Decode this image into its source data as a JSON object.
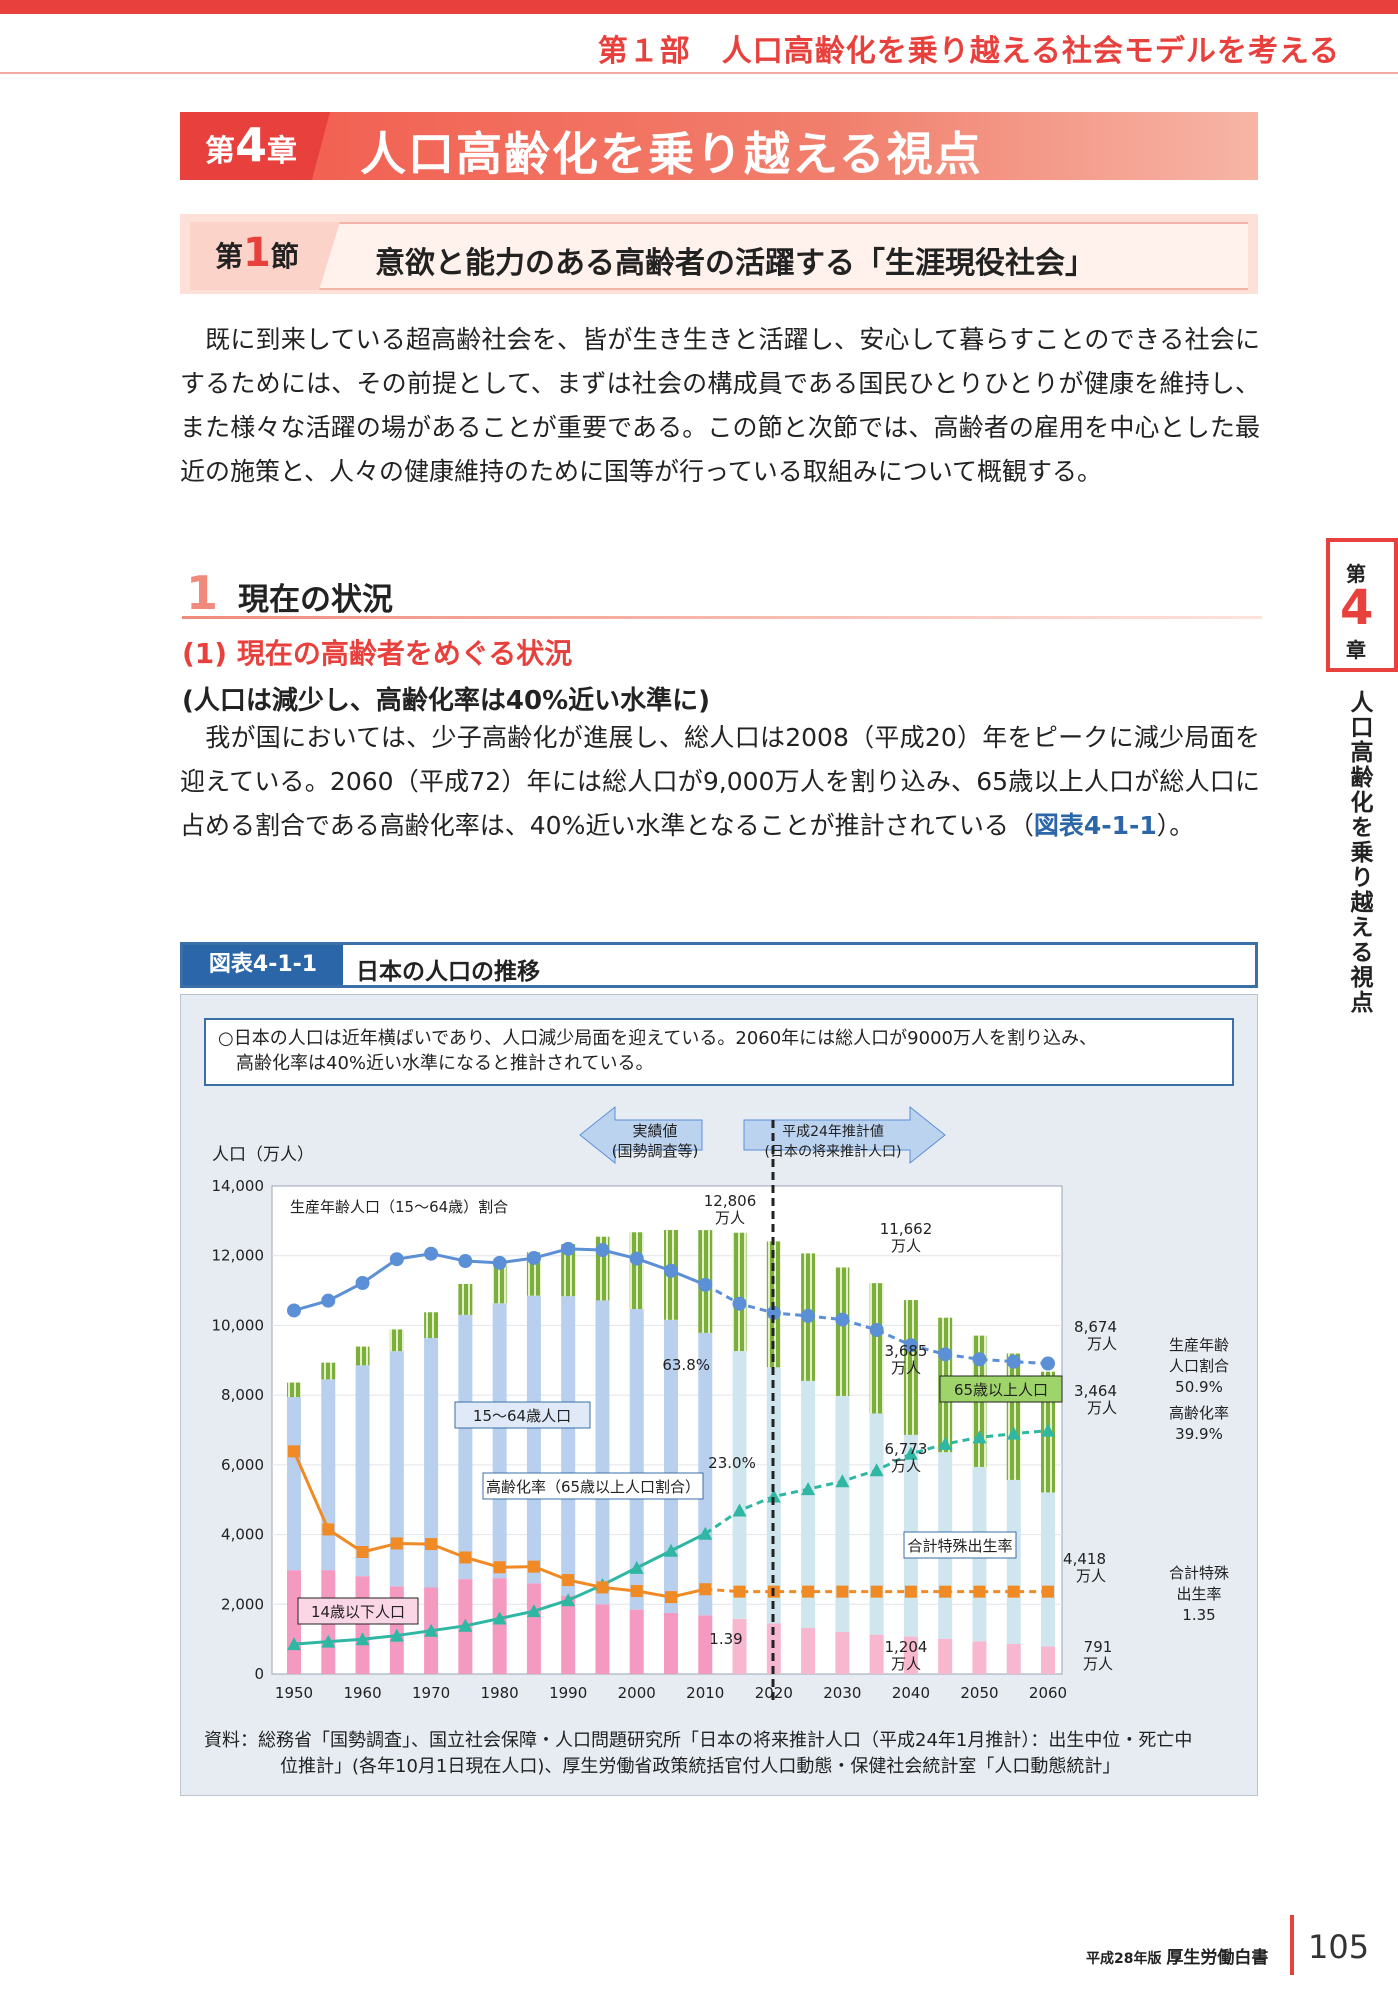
{
  "part_title": "第１部　人口高齢化を乗り越える社会モデルを考える",
  "chapter": {
    "prefix": "第",
    "number": "4",
    "suffix": "章",
    "title": "人口高齢化を乗り越える視点"
  },
  "section": {
    "prefix": "第",
    "number": "1",
    "suffix": "節",
    "title": "意欲と能力のある高齢者の活躍する「生涯現役社会」"
  },
  "intro_paragraph": "既に到来している超高齢社会を、皆が生き生きと活躍し、安心して暮らすことのできる社会にするためには、その前提として、まずは社会の構成員である国民ひとりひとりが健康を維持し、また様々な活躍の場があることが重要である。この節と次節では、高齢者の雇用を中心とした最近の施策と、人々の健康維持のために国等が行っている取組みについて概観する。",
  "heading1": {
    "number": "1",
    "title": "現在の状況"
  },
  "heading2": "(1) 現在の高齢者をめぐる状況",
  "heading3": "(人口は減少し、高齢化率は40%近い水準に)",
  "body_paragraph": "我が国においては、少子高齢化が進展し、総人口は2008（平成20）年をピークに減少局面を迎えている。2060（平成72）年には総人口が9,000万人を割り込み、65歳以上人口が総人口に占める割合である高齢化率は、40%近い水準となることが推計されている（",
  "body_paragraph_link": "図表4-1-1",
  "body_paragraph_end": "）。",
  "side_tab": {
    "top": "第",
    "number": "4",
    "bottom": "章",
    "title": "人口高齢化を乗り越える視点"
  },
  "figure": {
    "label": "図表4-1-1",
    "title": "日本の人口の推移",
    "summary_line1": "○日本の人口は近年横ばいであり、人口減少局面を迎えている。2060年には総人口が9000万人を割り込み、",
    "summary_line2": "高齢化率は40%近い水準になると推計されている。",
    "source_line1": "資料：総務省「国勢調査」、国立社会保障・人口問題研究所「日本の将来推計人口（平成24年1月推計）：出生中位・死亡中",
    "source_line2": "位推計」(各年10月1日現在人口)、厚生労働省政策統括官付人口動態・保健社会統計室「人口動態統計」"
  },
  "chart_data": {
    "type": "bar",
    "ylabel": "人口（万人）",
    "ylim": [
      0,
      14000
    ],
    "yticks": [
      "0",
      "2,000",
      "4,000",
      "6,000",
      "8,000",
      "10,000",
      "12,000",
      "14,000"
    ],
    "xticks": [
      "1950",
      "1960",
      "1970",
      "1980",
      "1990",
      "2000",
      "2010",
      "2020",
      "2030",
      "2040",
      "2050",
      "2060"
    ],
    "years": [
      1950,
      1955,
      1960,
      1965,
      1970,
      1975,
      1980,
      1985,
      1990,
      1995,
      2000,
      2005,
      2010,
      2015,
      2020,
      2025,
      2030,
      2035,
      2040,
      2045,
      2050,
      2055,
      2060
    ],
    "stacked_series": [
      {
        "name": "14歳以下人口",
        "color": "#f49ac1",
        "values": [
          2979,
          2980,
          2807,
          2517,
          2482,
          2722,
          2751,
          2603,
          2249,
          2001,
          1847,
          1752,
          1684,
          1583,
          1457,
          1324,
          1204,
          1129,
          1073,
          1012,
          939,
          861,
          791
        ]
      },
      {
        "name": "15～64歳人口",
        "color": "#b8cfee",
        "values": [
          4966,
          5473,
          6047,
          6744,
          7157,
          7581,
          7883,
          8251,
          8590,
          8716,
          8622,
          8409,
          8103,
          7682,
          7341,
          7085,
          6773,
          6343,
          5787,
          5353,
          5001,
          4706,
          4418
        ]
      },
      {
        "name": "65歳以上人口",
        "color": "#7cae3c",
        "values": [
          416,
          479,
          540,
          624,
          739,
          887,
          1065,
          1247,
          1493,
          1828,
          2204,
          2576,
          2948,
          3395,
          3612,
          3657,
          3685,
          3741,
          3868,
          3856,
          3768,
          3626,
          3464
        ]
      }
    ],
    "working_age_ratio": {
      "name": "生産年齢人口（15～64歳）割合",
      "color": "#5b8fd6",
      "unit": "%",
      "values": [
        59.6,
        61.2,
        64.1,
        68.0,
        68.9,
        67.7,
        67.4,
        68.2,
        69.7,
        69.5,
        68.1,
        66.1,
        63.8,
        60.7,
        59.2,
        58.7,
        58.1,
        56.4,
        53.9,
        52.4,
        51.6,
        51.2,
        50.9
      ]
    },
    "aging_rate": {
      "name": "高齢化率（65歳以上人口割合）",
      "color": "#2fb7a3",
      "unit": "%",
      "values": [
        4.9,
        5.3,
        5.7,
        6.3,
        7.1,
        7.9,
        9.1,
        10.3,
        12.1,
        14.6,
        17.4,
        20.2,
        23.0,
        26.8,
        29.1,
        30.3,
        31.6,
        33.4,
        36.1,
        37.7,
        38.8,
        39.4,
        39.9
      ]
    },
    "tfr": {
      "name": "合計特殊出生率",
      "color": "#f08a24",
      "values": [
        3.65,
        2.37,
        2.0,
        2.14,
        2.13,
        1.91,
        1.75,
        1.76,
        1.54,
        1.42,
        1.36,
        1.26,
        1.39,
        1.35,
        1.35,
        1.35,
        1.35,
        1.35,
        1.35,
        1.35,
        1.35,
        1.35,
        1.35
      ]
    },
    "labels": {
      "actual": "実績値",
      "actual_sub": "(国勢調査等)",
      "projected": "平成24年推計値",
      "projected_sub": "(日本の将来推計人口)",
      "working_ratio_series": "生産年齢人口（15～64歳）割合",
      "age15_64": "15～64歳人口",
      "aging_rate_series": "高齢化率（65歳以上人口割合）",
      "age65": "65歳以上人口",
      "age14": "14歳以下人口",
      "tfr_series": "合計特殊出生率",
      "v12806": "12,806",
      "v11662": "11,662",
      "v8674": "8,674",
      "v3685": "3,685",
      "v3464": "3,464",
      "v6773": "6,773",
      "v4418": "4,418",
      "v1204": "1,204",
      "v791": "791",
      "man": "万人",
      "p638": "63.8%",
      "p230": "23.0%",
      "p139": "1.39",
      "right_ratio_1": "生産年齢",
      "right_ratio_2": "人口割合",
      "right_ratio_3": "50.9%",
      "right_aging_1": "高齢化率",
      "right_aging_2": "39.9%",
      "right_tfr_1": "合計特殊",
      "right_tfr_2": "出生率",
      "right_tfr_3": "1.35"
    }
  },
  "footer": {
    "edition": "平成28年版",
    "book": "厚生労働白書",
    "page": "105"
  }
}
